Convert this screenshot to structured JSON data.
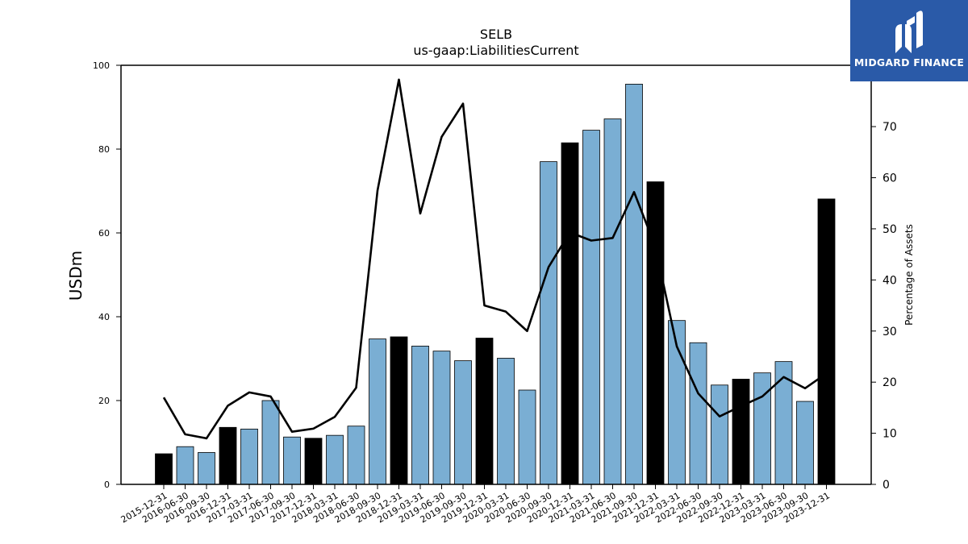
{
  "logo": {
    "text": "MIDGARD FINANCE",
    "bg_color": "#2a5aa8"
  },
  "chart_data": {
    "type": "bar",
    "title": "SELB",
    "subtitle": "us-gaap:LiabilitiesCurrent",
    "ylabel": "USDm",
    "y2label": "Percentage of Assets",
    "ylim": [
      0,
      100
    ],
    "y2lim": [
      0,
      82
    ],
    "yticks": [
      0,
      20,
      40,
      60,
      80,
      100
    ],
    "y2ticks": [
      0,
      10,
      20,
      30,
      40,
      50,
      60,
      70,
      80
    ],
    "categories": [
      "2015-12-31",
      "2016-06-30",
      "2016-09-30",
      "2016-12-31",
      "2017-03-31",
      "2017-06-30",
      "2017-09-30",
      "2017-12-31",
      "2018-03-31",
      "2018-06-30",
      "2018-09-30",
      "2018-12-31",
      "2019-03-31",
      "2019-06-30",
      "2019-09-30",
      "2019-12-31",
      "2020-03-31",
      "2020-06-30",
      "2020-09-30",
      "2020-12-31",
      "2021-03-31",
      "2021-06-30",
      "2021-09-30",
      "2021-12-31",
      "2022-03-31",
      "2022-06-30",
      "2022-09-30",
      "2022-12-31",
      "2023-03-31",
      "2023-06-30",
      "2023-09-30",
      "2023-12-31"
    ],
    "series": [
      {
        "axis": "left",
        "kind": "bar",
        "values": [
          7.3,
          9.0,
          7.6,
          13.6,
          13.2,
          20.0,
          11.3,
          11.0,
          11.7,
          13.9,
          34.7,
          35.2,
          33.0,
          31.8,
          29.5,
          34.9,
          30.1,
          22.5,
          77.0,
          81.5,
          84.5,
          87.2,
          95.5,
          72.2,
          39.1,
          33.8,
          23.7,
          25.1,
          26.6,
          29.3,
          19.8,
          68.1
        ],
        "highlight": [
          true,
          false,
          false,
          true,
          false,
          false,
          false,
          true,
          false,
          false,
          false,
          true,
          false,
          false,
          false,
          true,
          false,
          false,
          false,
          true,
          false,
          false,
          false,
          true,
          false,
          false,
          false,
          true,
          false,
          false,
          false,
          true
        ]
      },
      {
        "axis": "right",
        "kind": "line",
        "values": [
          17.0,
          9.8,
          9.0,
          15.4,
          18.0,
          17.2,
          10.3,
          10.9,
          13.2,
          18.9,
          57.5,
          79.2,
          53.0,
          68.0,
          74.5,
          35.0,
          33.8,
          30.0,
          42.5,
          49.3,
          47.7,
          48.2,
          57.2,
          46.5,
          27.0,
          17.8,
          13.3,
          15.3,
          17.2,
          21.0,
          18.8,
          21.7
        ]
      }
    ],
    "colors": {
      "bar": "#7aaed3",
      "bar_highlight": "#000000",
      "line": "#000000"
    },
    "grid": false
  }
}
